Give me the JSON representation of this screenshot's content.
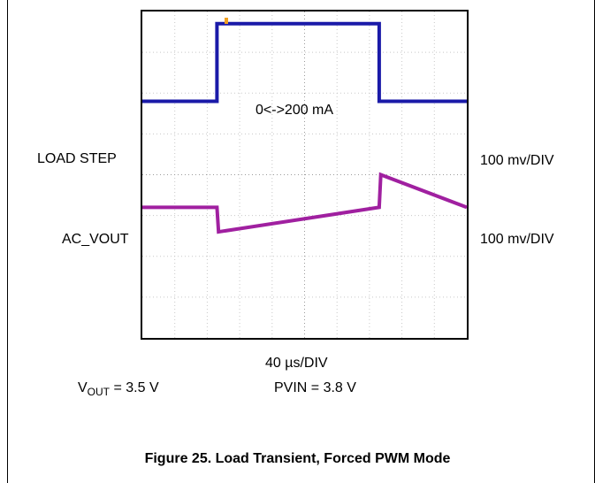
{
  "chart_data": {
    "type": "line",
    "x_unit": "40 µs/DIV",
    "x_divisions": 10,
    "y_divisions": 8,
    "grid": true,
    "series": [
      {
        "name": "LOAD STEP",
        "scale": "100 mv/DIV",
        "color": "#1a1aa8",
        "annotation": "0<->200 mA",
        "x": [
          0,
          2.3,
          2.3,
          7.3,
          7.3,
          10
        ],
        "y": [
          5.8,
          5.8,
          7.7,
          7.7,
          5.8,
          5.8
        ]
      },
      {
        "name": "AC_VOUT",
        "scale": "100 mv/DIV",
        "color": "#a020a0",
        "x": [
          0,
          2.3,
          2.35,
          7.3,
          7.35,
          10
        ],
        "y": [
          3.2,
          3.2,
          2.6,
          3.2,
          4.0,
          3.2
        ]
      }
    ]
  },
  "labels": {
    "load_step": "LOAD STEP",
    "load_step_scale": "100 mv/DIV",
    "ac_vout": "AC_VOUT",
    "ac_vout_scale": "100 mv/DIV",
    "annotation": "0<->200 mA",
    "timebase": "40 µs/DIV",
    "vout_v": "V",
    "vout_sub": "OUT",
    "vout_value": " = 3.5 V",
    "pvin": "PVIN = 3.8 V",
    "caption": "Figure 25. Load Transient, Forced PWM Mode"
  },
  "colors": {
    "load_step_trace": "#1a1aa8",
    "ac_vout_trace": "#a020a0",
    "trigger_marker": "#f0a020"
  }
}
